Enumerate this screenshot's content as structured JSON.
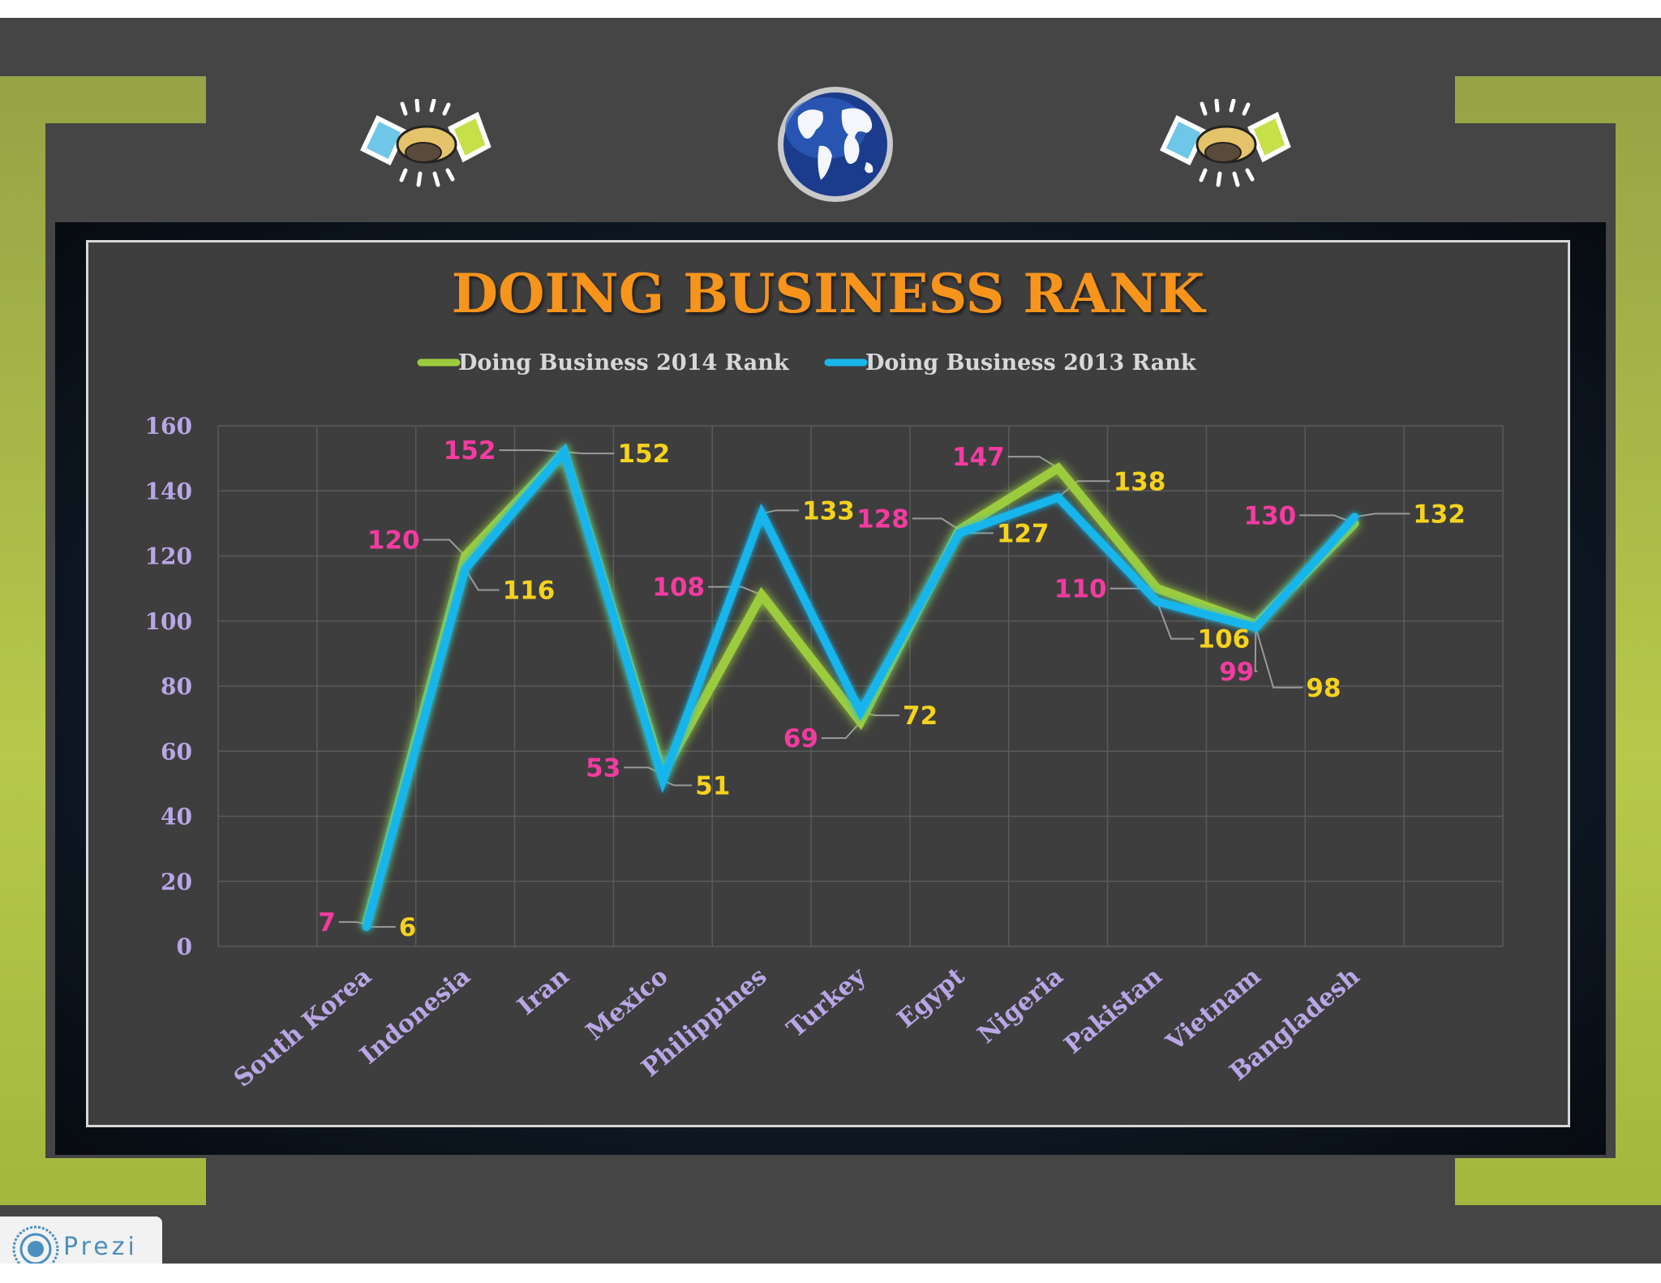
{
  "colors": {
    "title": "#f7941d",
    "series_2014": "#9ccc3c",
    "series_2013": "#19b6ec",
    "label_2014": "#f43ba0",
    "label_2013": "#f5d21d",
    "axis_text": "#b9a6e6",
    "legend_text": "#d8d8d8",
    "frame_green": "#a9bb44",
    "background": "#454545"
  },
  "icons": {
    "left": "handshake-icon",
    "center": "globe-icon",
    "right": "handshake-icon"
  },
  "branding": {
    "prezi_label": "Prezi"
  },
  "chart_data": {
    "type": "line",
    "title": "DOING BUSINESS RANK",
    "categories": [
      "South Korea",
      "Indonesia",
      "Iran",
      "Mexico",
      "Philippines",
      "Turkey",
      "Egypt",
      "Nigeria",
      "Pakistan",
      "Vietnam",
      "Bangladesh"
    ],
    "series": [
      {
        "name": "Doing Business 2014 Rank",
        "values": [
          7,
          120,
          152,
          53,
          108,
          69,
          128,
          147,
          110,
          99,
          130
        ]
      },
      {
        "name": "Doing Business 2013 Rank",
        "values": [
          6,
          116,
          152,
          51,
          133,
          72,
          127,
          138,
          106,
          98,
          132
        ]
      }
    ],
    "ylim": [
      0,
      160
    ],
    "yticks": [
      0,
      20,
      40,
      60,
      80,
      100,
      120,
      140,
      160
    ],
    "grid": true,
    "legend_position": "top"
  }
}
